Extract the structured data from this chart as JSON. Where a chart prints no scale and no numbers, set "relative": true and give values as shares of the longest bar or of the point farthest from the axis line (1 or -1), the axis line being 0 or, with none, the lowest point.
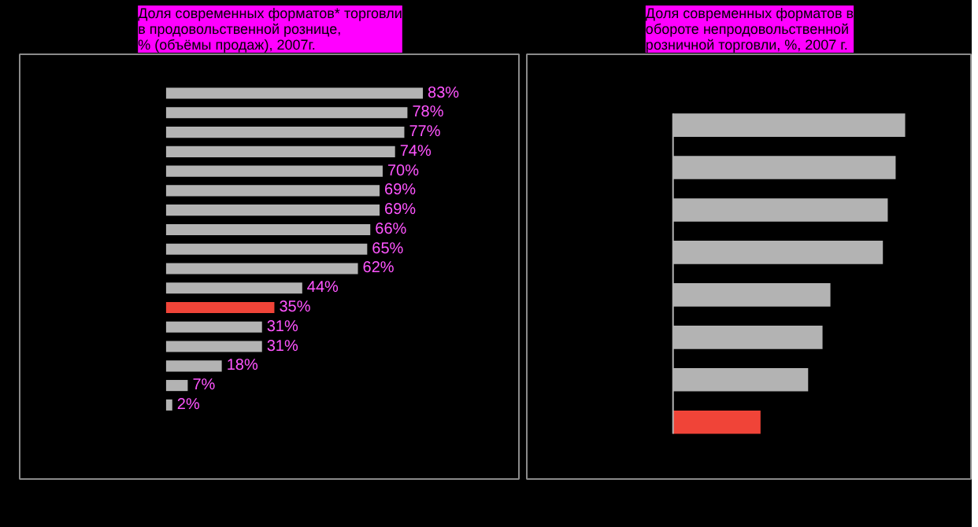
{
  "chart_data": [
    {
      "type": "bar",
      "orientation": "horizontal",
      "title": "Доля современных форматов* торговли\nв продовольственной рознице,\n% (объёмы продаж), 2007г.",
      "categories": [
        null,
        null,
        null,
        null,
        null,
        null,
        null,
        null,
        null,
        null,
        null,
        null,
        null,
        null,
        null,
        null,
        null
      ],
      "values": [
        83,
        78,
        77,
        74,
        70,
        69,
        69,
        66,
        65,
        62,
        44,
        35,
        31,
        31,
        18,
        7,
        2
      ],
      "colors": [
        "#b3b3b3",
        "#b3b3b3",
        "#b3b3b3",
        "#b3b3b3",
        "#b3b3b3",
        "#b3b3b3",
        "#b3b3b3",
        "#b3b3b3",
        "#b3b3b3",
        "#b3b3b3",
        "#b3b3b3",
        "#f04438",
        "#b3b3b3",
        "#b3b3b3",
        "#b3b3b3",
        "#b3b3b3",
        "#b3b3b3"
      ],
      "value_labels": [
        "83%",
        "78%",
        "77%",
        "74%",
        "70%",
        "69%",
        "69%",
        "66%",
        "65%",
        "62%",
        "44%",
        "35%",
        "31%",
        "31%",
        "18%",
        "7%",
        "2%"
      ]
    },
    {
      "type": "bar",
      "orientation": "horizontal",
      "relative": true,
      "title": "Доля современных форматов в\nобороте непродовольственной\nрозничной торговли, %, 2007 г.",
      "categories": [
        null,
        null,
        null,
        null,
        null,
        null,
        null,
        null
      ],
      "values": [
        1,
        0.959,
        0.925,
        0.904,
        0.678,
        0.644,
        0.582,
        0.377
      ],
      "colors": [
        "#b3b3b3",
        "#b3b3b3",
        "#b3b3b3",
        "#b3b3b3",
        "#b3b3b3",
        "#b3b3b3",
        "#b3b3b3",
        "#f04438"
      ]
    }
  ]
}
